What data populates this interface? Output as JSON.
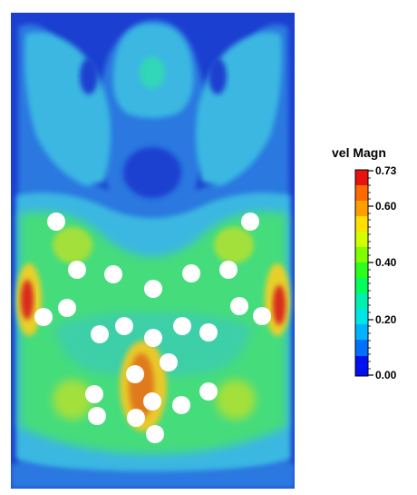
{
  "legend": {
    "title": "vel Magn",
    "tick_labels": [
      "0.73",
      "0.60",
      "0.40",
      "0.20",
      "0.00"
    ],
    "max": 0.73,
    "min": 0.0,
    "colors": [
      "#ff0000",
      "#ff6600",
      "#ffcc00",
      "#ffff00",
      "#aaff00",
      "#66ff00",
      "#00ff33",
      "#00ff99",
      "#00ffcc",
      "#00cccc",
      "#0099ff",
      "#0033ff"
    ]
  },
  "field_colors": {
    "background": "#0033cc",
    "deep": "#1a3fd1",
    "blue": "#2277e0",
    "light_blue": "#3aa8e6",
    "cyan": "#38c8d8",
    "teal": "#33d6b8",
    "green": "#44e077",
    "lime": "#99e040",
    "yellow": "#e6d22a",
    "orange": "#e87a1a",
    "red": "#d82a1a",
    "cylinder": "#ffffff"
  },
  "cylinder_count": 26
}
